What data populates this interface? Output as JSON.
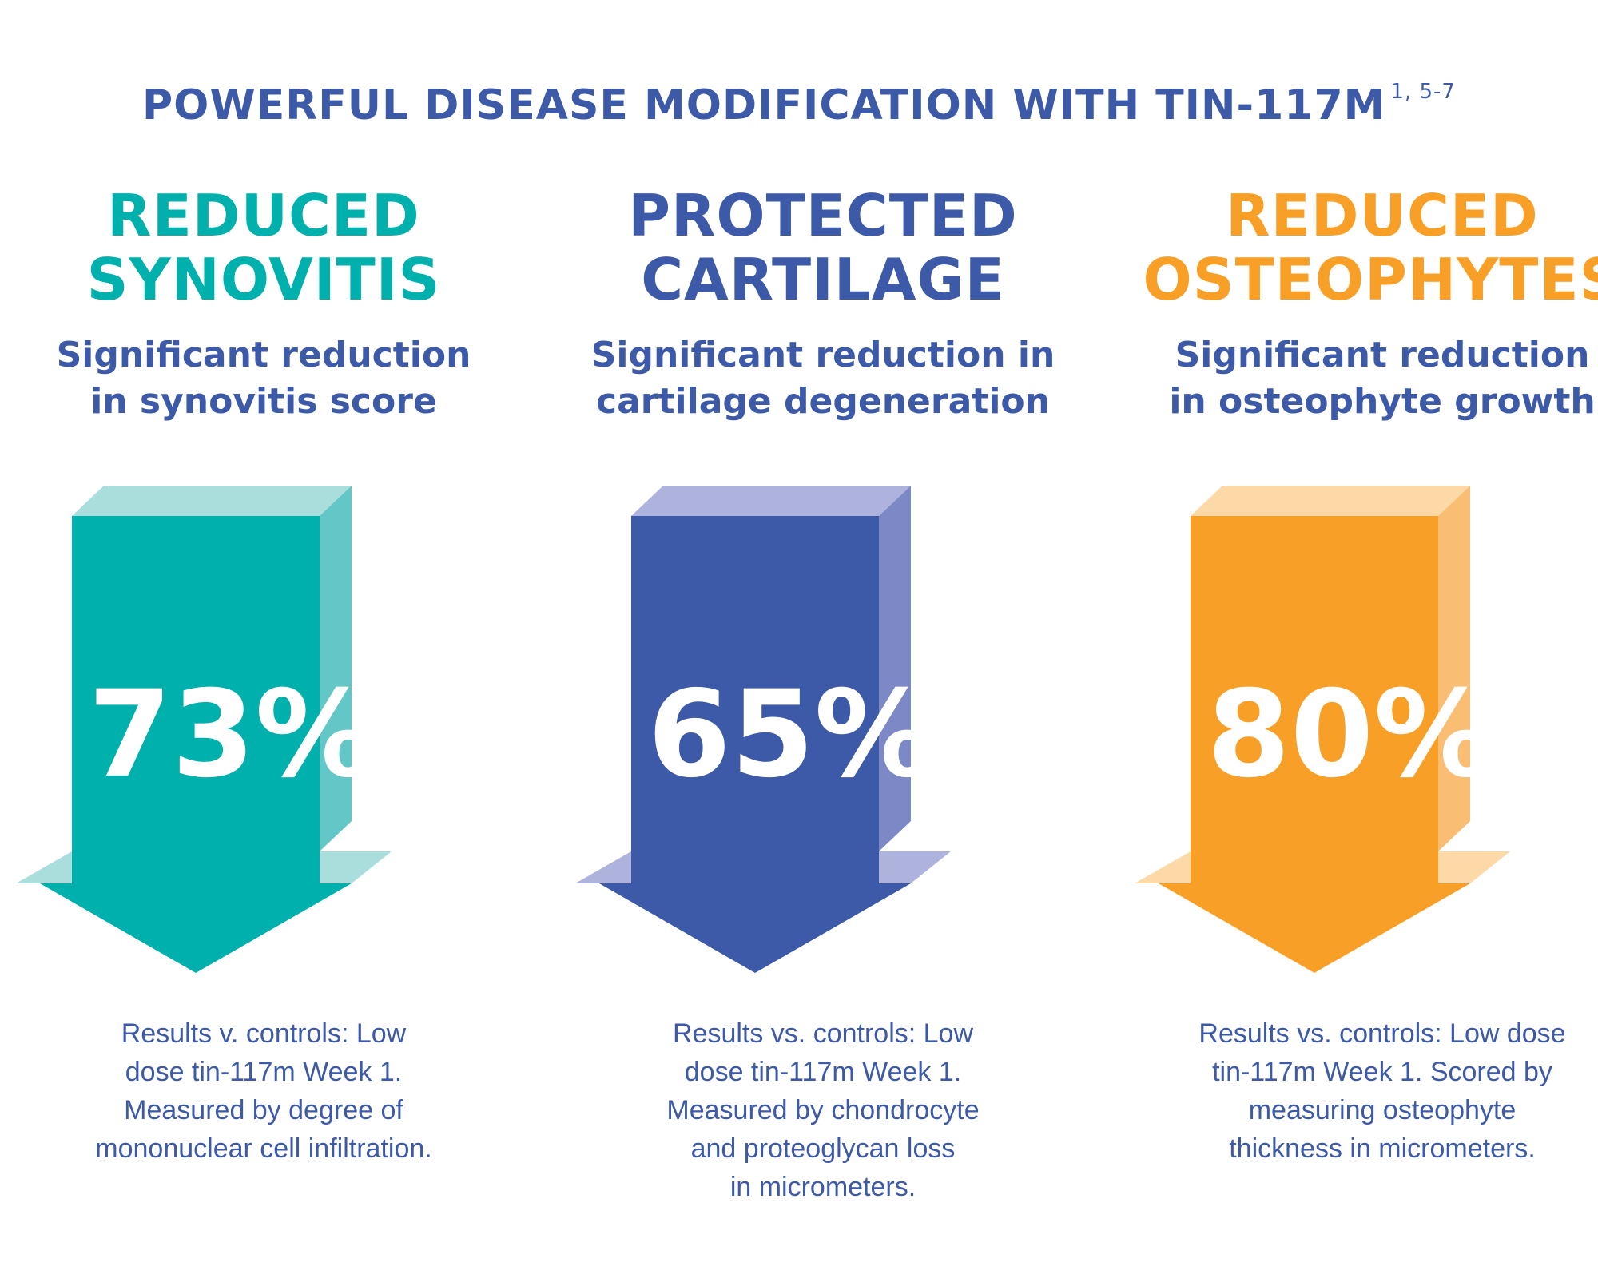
{
  "header": {
    "title": "POWERFUL DISEASE MODIFICATION WITH TIN-117M",
    "superscript": "1, 5-7"
  },
  "columns": [
    {
      "title_line1": "REDUCED",
      "title_line2": "SYNOVITIS",
      "subtitle_line1": "Significant reduction",
      "subtitle_line2": "in synovitis score",
      "percent": "73%",
      "note_lines": [
        "Results v. controls: Low",
        "dose tin-117m Week 1.",
        "Measured by degree of",
        "mononuclear cell infiltration."
      ],
      "colors": {
        "title": "#00b0ad",
        "front": "#00b0ad",
        "side": "#63c6c7",
        "top": "#a9dedd"
      }
    },
    {
      "title_line1": "PROTECTED",
      "title_line2": "CARTILAGE",
      "subtitle_line1": "Significant reduction in",
      "subtitle_line2": "cartilage degeneration",
      "percent": "65%",
      "note_lines": [
        "Results vs. controls: Low",
        "dose tin-117m Week 1.",
        "Measured by chondrocyte",
        "and proteoglycan loss",
        "in micrometers."
      ],
      "colors": {
        "title": "#3d5aa8",
        "front": "#3d5aa8",
        "side": "#7d89c7",
        "top": "#adb3dc"
      }
    },
    {
      "title_line1": "REDUCED",
      "title_line2": "OSTEOPHYTES",
      "subtitle_line1": "Significant reduction",
      "subtitle_line2": "in osteophyte growth",
      "percent": "80%",
      "note_lines": [
        "Results vs. controls: Low dose",
        "tin-117m Week 1. Scored by",
        "measuring osteophyte",
        "thickness in micrometers."
      ],
      "colors": {
        "title": "#f79f26",
        "front": "#f79f26",
        "side": "#fabd74",
        "top": "#fdd9a8"
      }
    }
  ]
}
